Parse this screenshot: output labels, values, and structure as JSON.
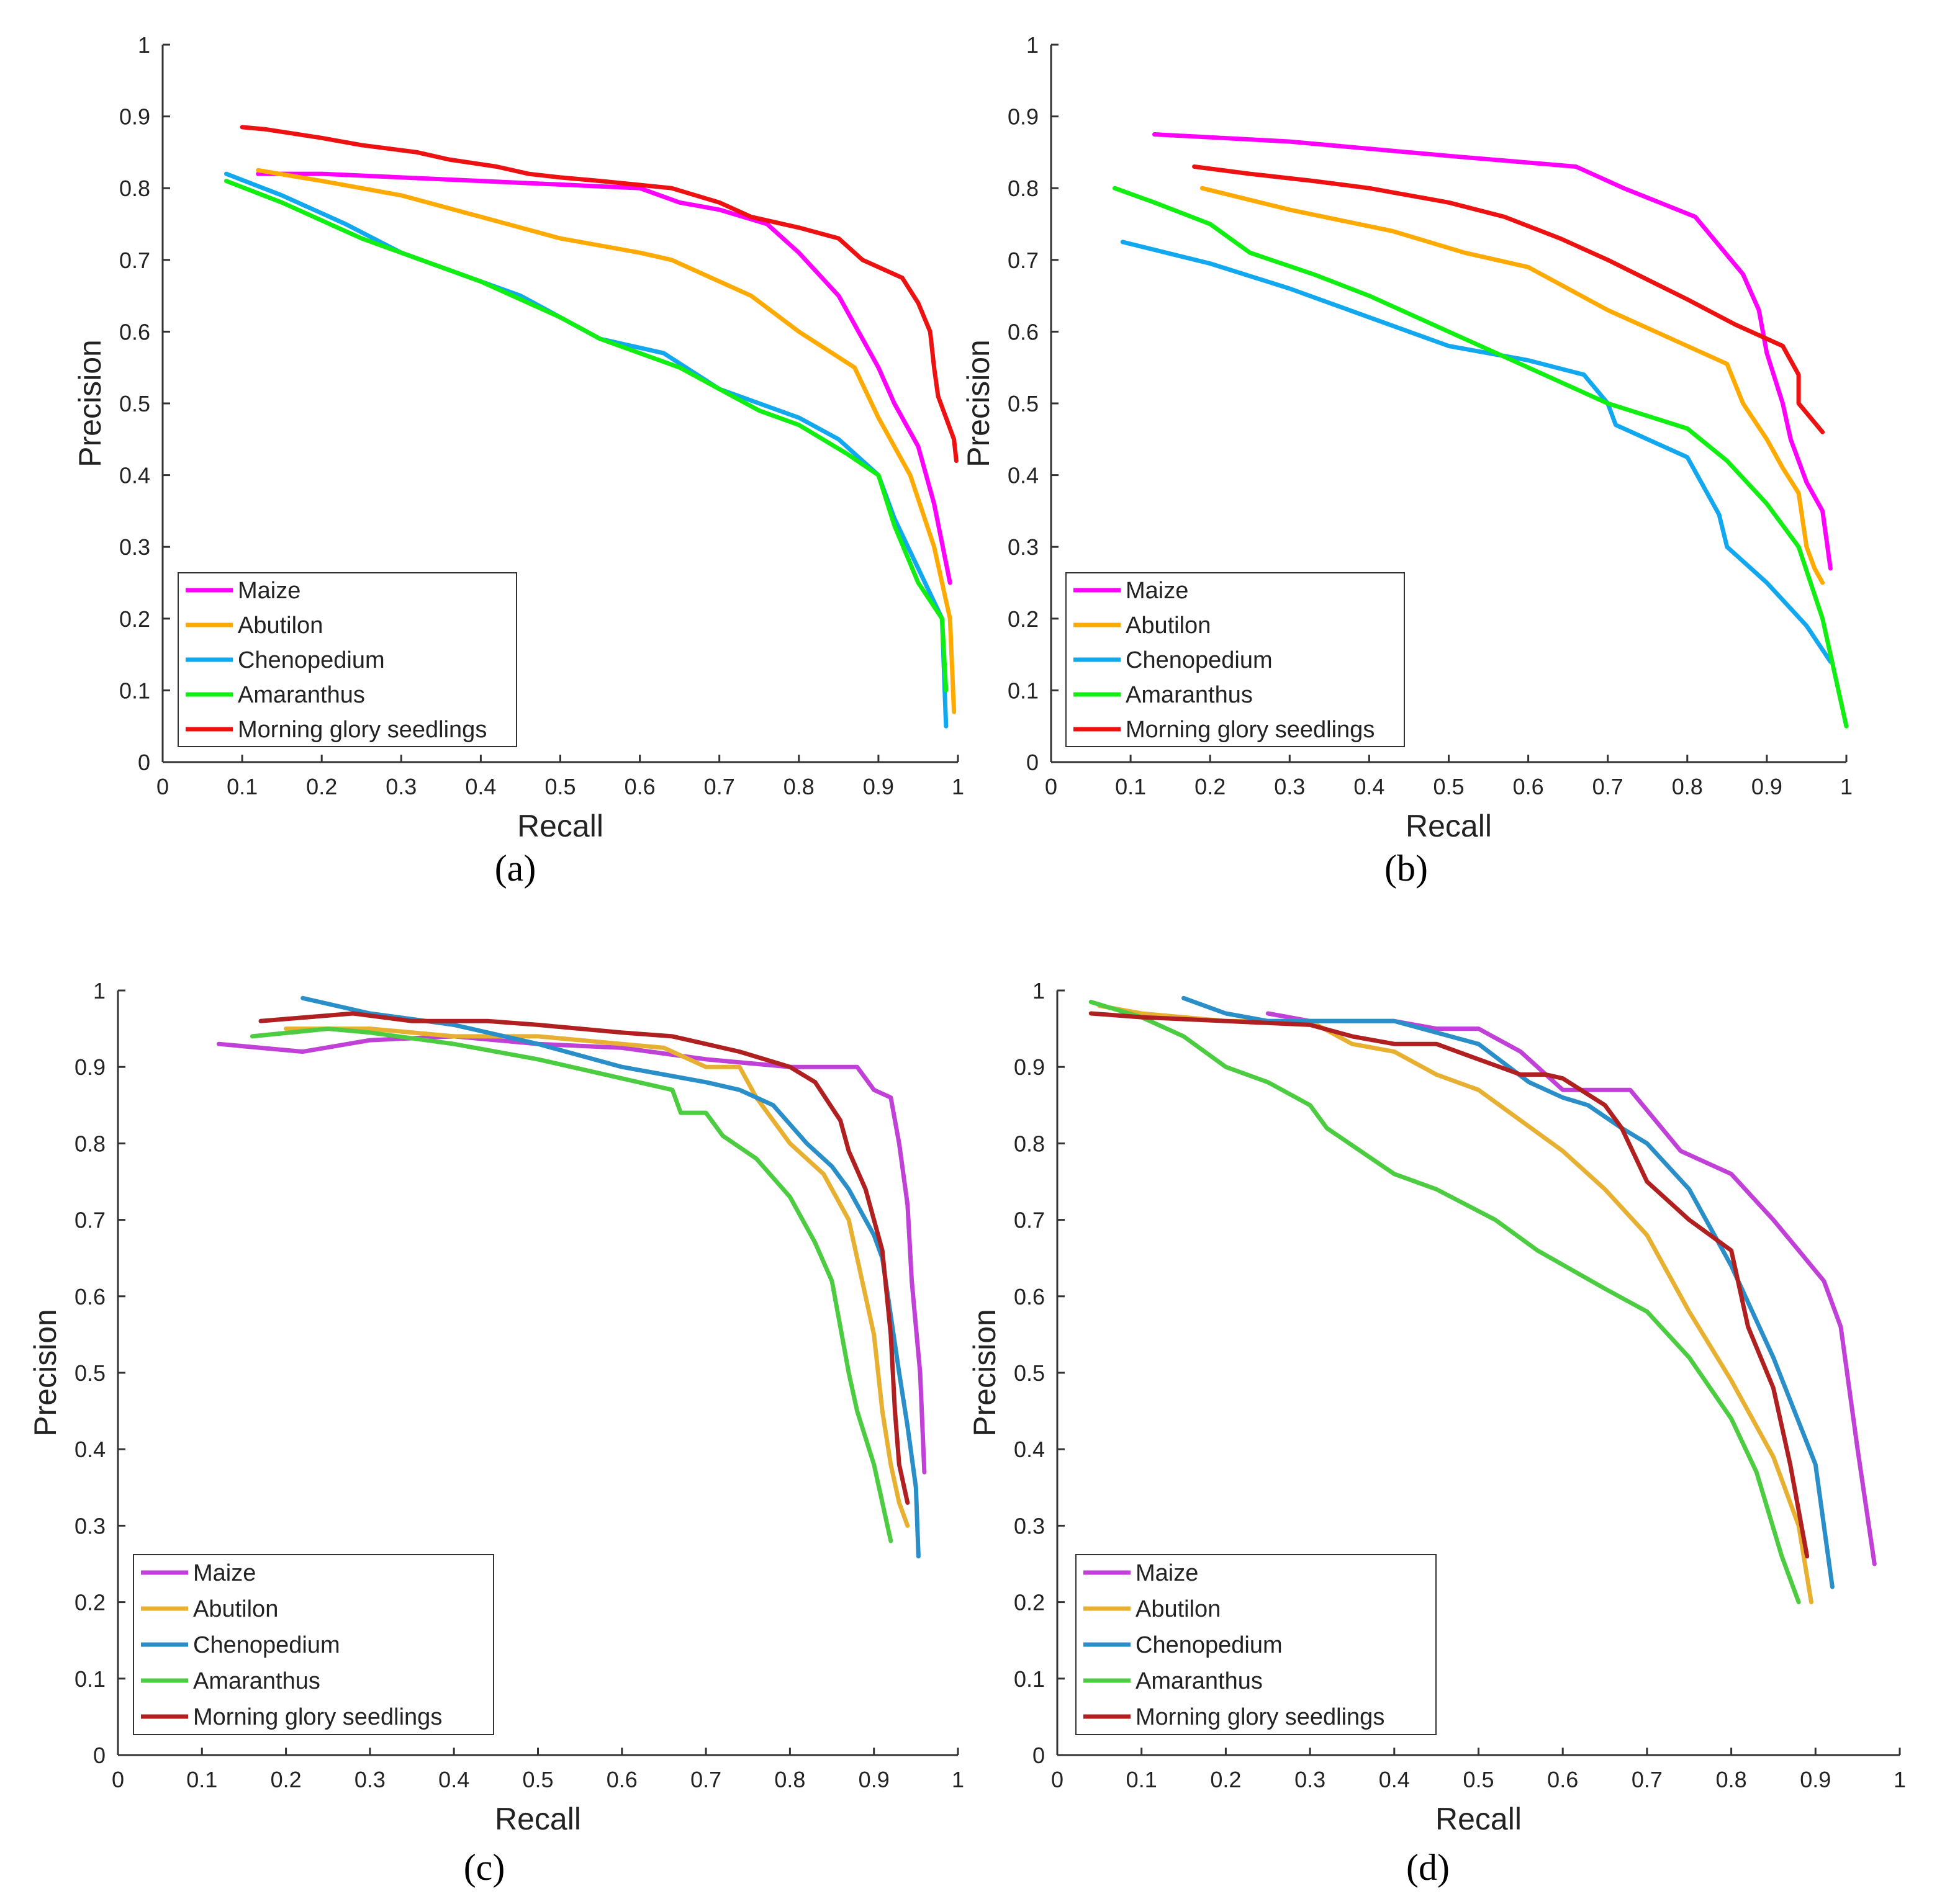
{
  "colors": {
    "bright": {
      "Maize": "#ff00ff",
      "Abutilon": "#ffaa00",
      "Chenopedium": "#11a8f0",
      "Amaranthus": "#11ee11",
      "Morning glory seedlings": "#ee1111"
    },
    "muted": {
      "Maize": "#c040d8",
      "Abutilon": "#e8b030",
      "Chenopedium": "#2a8fc8",
      "Amaranthus": "#4ccc40",
      "Morning glory seedlings": "#b02020"
    }
  },
  "chart_data": [
    {
      "id": "a",
      "caption": "(a)",
      "type": "line",
      "xlabel": "Recall",
      "ylabel": "Precision",
      "xlim": [
        0,
        1
      ],
      "ylim": [
        0,
        1
      ],
      "xticks": [
        "0",
        "0.1",
        "0.2",
        "0.3",
        "0.4",
        "0.5",
        "0.6",
        "0.7",
        "0.8",
        "0.9",
        "1"
      ],
      "yticks": [
        "0",
        "0.1",
        "0.2",
        "0.3",
        "0.4",
        "0.5",
        "0.6",
        "0.7",
        "0.8",
        "0.9",
        "1"
      ],
      "grid": false,
      "legend_position": "bottom-left",
      "palette": "bright",
      "series": [
        {
          "name": "Maize",
          "x": [
            0.12,
            0.2,
            0.3,
            0.4,
            0.5,
            0.6,
            0.65,
            0.7,
            0.76,
            0.8,
            0.85,
            0.88,
            0.9,
            0.92,
            0.95,
            0.97,
            0.99
          ],
          "y": [
            0.82,
            0.82,
            0.815,
            0.81,
            0.805,
            0.8,
            0.78,
            0.77,
            0.75,
            0.71,
            0.65,
            0.59,
            0.55,
            0.5,
            0.44,
            0.36,
            0.25
          ]
        },
        {
          "name": "Abutilon",
          "x": [
            0.12,
            0.2,
            0.3,
            0.4,
            0.5,
            0.6,
            0.64,
            0.7,
            0.74,
            0.8,
            0.87,
            0.9,
            0.94,
            0.97,
            0.99,
            0.995
          ],
          "y": [
            0.825,
            0.81,
            0.79,
            0.76,
            0.73,
            0.71,
            0.7,
            0.67,
            0.65,
            0.6,
            0.55,
            0.48,
            0.4,
            0.3,
            0.2,
            0.07
          ]
        },
        {
          "name": "Chenopedium",
          "x": [
            0.08,
            0.15,
            0.23,
            0.3,
            0.4,
            0.45,
            0.5,
            0.55,
            0.63,
            0.7,
            0.75,
            0.8,
            0.85,
            0.9,
            0.92,
            0.95,
            0.98,
            0.985
          ],
          "y": [
            0.82,
            0.79,
            0.75,
            0.71,
            0.67,
            0.65,
            0.62,
            0.59,
            0.57,
            0.52,
            0.5,
            0.48,
            0.45,
            0.4,
            0.34,
            0.27,
            0.2,
            0.05
          ]
        },
        {
          "name": "Amaranthus",
          "x": [
            0.08,
            0.15,
            0.25,
            0.3,
            0.4,
            0.5,
            0.55,
            0.6,
            0.65,
            0.7,
            0.75,
            0.8,
            0.83,
            0.86,
            0.9,
            0.92,
            0.95,
            0.98,
            0.985
          ],
          "y": [
            0.81,
            0.78,
            0.73,
            0.71,
            0.67,
            0.62,
            0.59,
            0.57,
            0.55,
            0.52,
            0.49,
            0.47,
            0.45,
            0.43,
            0.4,
            0.33,
            0.25,
            0.2,
            0.1
          ]
        },
        {
          "name": "Morning glory seedlings",
          "x": [
            0.1,
            0.13,
            0.2,
            0.25,
            0.32,
            0.36,
            0.42,
            0.46,
            0.5,
            0.55,
            0.64,
            0.7,
            0.74,
            0.8,
            0.85,
            0.88,
            0.93,
            0.95,
            0.965,
            0.97,
            0.975,
            0.985,
            0.995,
            0.998
          ],
          "y": [
            0.885,
            0.882,
            0.87,
            0.86,
            0.85,
            0.84,
            0.83,
            0.82,
            0.815,
            0.81,
            0.8,
            0.78,
            0.76,
            0.745,
            0.73,
            0.7,
            0.675,
            0.64,
            0.6,
            0.55,
            0.51,
            0.48,
            0.45,
            0.42
          ]
        }
      ]
    },
    {
      "id": "b",
      "caption": "(b)",
      "type": "line",
      "xlabel": "Recall",
      "ylabel": "Precision",
      "xlim": [
        0,
        1
      ],
      "ylim": [
        0,
        1
      ],
      "xticks": [
        "0",
        "0.1",
        "0.2",
        "0.3",
        "0.4",
        "0.5",
        "0.6",
        "0.7",
        "0.8",
        "0.9",
        "1"
      ],
      "yticks": [
        "0",
        "0.1",
        "0.2",
        "0.3",
        "0.4",
        "0.5",
        "0.6",
        "0.7",
        "0.8",
        "0.9",
        "1"
      ],
      "grid": false,
      "legend_position": "bottom-left",
      "palette": "bright",
      "series": [
        {
          "name": "Maize",
          "x": [
            0.13,
            0.3,
            0.5,
            0.66,
            0.72,
            0.81,
            0.87,
            0.89,
            0.9,
            0.92,
            0.93,
            0.95,
            0.97,
            0.98
          ],
          "y": [
            0.875,
            0.865,
            0.845,
            0.83,
            0.8,
            0.76,
            0.68,
            0.63,
            0.57,
            0.5,
            0.45,
            0.39,
            0.35,
            0.27
          ]
        },
        {
          "name": "Abutilon",
          "x": [
            0.19,
            0.3,
            0.43,
            0.52,
            0.6,
            0.7,
            0.76,
            0.85,
            0.87,
            0.9,
            0.92,
            0.94,
            0.95,
            0.96,
            0.97
          ],
          "y": [
            0.8,
            0.77,
            0.74,
            0.71,
            0.69,
            0.63,
            0.6,
            0.555,
            0.5,
            0.45,
            0.41,
            0.375,
            0.3,
            0.27,
            0.25
          ]
        },
        {
          "name": "Chenopedium",
          "x": [
            0.09,
            0.2,
            0.3,
            0.4,
            0.5,
            0.6,
            0.67,
            0.7,
            0.71,
            0.8,
            0.84,
            0.85,
            0.9,
            0.95,
            0.98
          ],
          "y": [
            0.725,
            0.695,
            0.66,
            0.62,
            0.58,
            0.56,
            0.54,
            0.5,
            0.47,
            0.425,
            0.345,
            0.3,
            0.25,
            0.19,
            0.14
          ]
        },
        {
          "name": "Amaranthus",
          "x": [
            0.08,
            0.13,
            0.2,
            0.25,
            0.33,
            0.4,
            0.5,
            0.6,
            0.7,
            0.8,
            0.85,
            0.9,
            0.94,
            0.97,
            1.0
          ],
          "y": [
            0.8,
            0.78,
            0.75,
            0.71,
            0.68,
            0.65,
            0.6,
            0.55,
            0.5,
            0.465,
            0.42,
            0.36,
            0.3,
            0.2,
            0.05
          ]
        },
        {
          "name": "Morning glory seedlings",
          "x": [
            0.18,
            0.25,
            0.33,
            0.4,
            0.5,
            0.57,
            0.64,
            0.7,
            0.8,
            0.86,
            0.92,
            0.94,
            0.94,
            0.97
          ],
          "y": [
            0.83,
            0.82,
            0.81,
            0.8,
            0.78,
            0.76,
            0.73,
            0.7,
            0.645,
            0.61,
            0.58,
            0.54,
            0.5,
            0.46
          ]
        }
      ]
    },
    {
      "id": "c",
      "caption": "(c)",
      "type": "line",
      "xlabel": "Recall",
      "ylabel": "Precision",
      "xlim": [
        0,
        1
      ],
      "ylim": [
        0,
        1
      ],
      "xticks": [
        "0",
        "0.1",
        "0.2",
        "0.3",
        "0.4",
        "0.5",
        "0.6",
        "0.7",
        "0.8",
        "0.9",
        "1"
      ],
      "yticks": [
        "0",
        "0.1",
        "0.2",
        "0.3",
        "0.4",
        "0.5",
        "0.6",
        "0.7",
        "0.8",
        "0.9",
        "1"
      ],
      "grid": false,
      "legend_position": "bottom-left",
      "palette": "muted",
      "series": [
        {
          "name": "Maize",
          "x": [
            0.12,
            0.22,
            0.3,
            0.4,
            0.5,
            0.6,
            0.7,
            0.8,
            0.88,
            0.9,
            0.92,
            0.93,
            0.94,
            0.945,
            0.955,
            0.96
          ],
          "y": [
            0.93,
            0.92,
            0.935,
            0.94,
            0.93,
            0.925,
            0.91,
            0.9,
            0.9,
            0.87,
            0.86,
            0.8,
            0.72,
            0.62,
            0.5,
            0.37
          ]
        },
        {
          "name": "Abutilon",
          "x": [
            0.2,
            0.3,
            0.4,
            0.5,
            0.6,
            0.65,
            0.7,
            0.74,
            0.76,
            0.8,
            0.84,
            0.87,
            0.89,
            0.9,
            0.91,
            0.92,
            0.93,
            0.94
          ],
          "y": [
            0.95,
            0.95,
            0.94,
            0.94,
            0.93,
            0.925,
            0.9,
            0.9,
            0.86,
            0.8,
            0.76,
            0.7,
            0.6,
            0.55,
            0.45,
            0.38,
            0.33,
            0.3
          ]
        },
        {
          "name": "Chenopedium",
          "x": [
            0.22,
            0.3,
            0.4,
            0.5,
            0.6,
            0.65,
            0.7,
            0.74,
            0.78,
            0.82,
            0.85,
            0.87,
            0.88,
            0.9,
            0.91,
            0.93,
            0.94,
            0.95,
            0.953
          ],
          "y": [
            0.99,
            0.97,
            0.955,
            0.93,
            0.9,
            0.89,
            0.88,
            0.87,
            0.85,
            0.8,
            0.77,
            0.74,
            0.72,
            0.68,
            0.65,
            0.5,
            0.43,
            0.35,
            0.26
          ]
        },
        {
          "name": "Amaranthus",
          "x": [
            0.16,
            0.25,
            0.3,
            0.4,
            0.5,
            0.6,
            0.66,
            0.67,
            0.7,
            0.72,
            0.76,
            0.8,
            0.83,
            0.85,
            0.86,
            0.87,
            0.88,
            0.9,
            0.92
          ],
          "y": [
            0.94,
            0.95,
            0.945,
            0.93,
            0.91,
            0.885,
            0.87,
            0.84,
            0.84,
            0.81,
            0.78,
            0.73,
            0.67,
            0.62,
            0.56,
            0.5,
            0.45,
            0.38,
            0.28
          ]
        },
        {
          "name": "Morning glory seedlings",
          "x": [
            0.17,
            0.28,
            0.35,
            0.44,
            0.5,
            0.6,
            0.66,
            0.7,
            0.74,
            0.77,
            0.8,
            0.83,
            0.86,
            0.87,
            0.89,
            0.9,
            0.91,
            0.92,
            0.925,
            0.93,
            0.94
          ],
          "y": [
            0.96,
            0.97,
            0.96,
            0.96,
            0.955,
            0.945,
            0.94,
            0.93,
            0.92,
            0.91,
            0.9,
            0.88,
            0.83,
            0.79,
            0.74,
            0.7,
            0.66,
            0.55,
            0.45,
            0.38,
            0.33
          ]
        }
      ]
    },
    {
      "id": "d",
      "caption": "(d)",
      "type": "line",
      "xlabel": "Recall",
      "ylabel": "Precision",
      "xlim": [
        0,
        1
      ],
      "ylim": [
        0,
        1
      ],
      "xticks": [
        "0",
        "0.1",
        "0.2",
        "0.3",
        "0.4",
        "0.5",
        "0.6",
        "0.7",
        "0.8",
        "0.9",
        "1"
      ],
      "yticks": [
        "0",
        "0.1",
        "0.2",
        "0.3",
        "0.4",
        "0.5",
        "0.6",
        "0.7",
        "0.8",
        "0.9",
        "1"
      ],
      "grid": false,
      "legend_position": "bottom-left",
      "palette": "muted",
      "series": [
        {
          "name": "Maize",
          "x": [
            0.25,
            0.3,
            0.4,
            0.45,
            0.5,
            0.55,
            0.6,
            0.68,
            0.74,
            0.8,
            0.85,
            0.88,
            0.91,
            0.93,
            0.95,
            0.97
          ],
          "y": [
            0.97,
            0.96,
            0.96,
            0.95,
            0.95,
            0.92,
            0.87,
            0.87,
            0.79,
            0.76,
            0.7,
            0.66,
            0.62,
            0.56,
            0.4,
            0.25
          ]
        },
        {
          "name": "Abutilon",
          "x": [
            0.05,
            0.1,
            0.2,
            0.3,
            0.35,
            0.4,
            0.45,
            0.5,
            0.55,
            0.6,
            0.65,
            0.7,
            0.75,
            0.8,
            0.85,
            0.88,
            0.895
          ],
          "y": [
            0.98,
            0.97,
            0.96,
            0.96,
            0.93,
            0.92,
            0.89,
            0.87,
            0.83,
            0.79,
            0.74,
            0.68,
            0.58,
            0.49,
            0.39,
            0.3,
            0.2
          ]
        },
        {
          "name": "Chenopedium",
          "x": [
            0.15,
            0.2,
            0.25,
            0.3,
            0.4,
            0.5,
            0.56,
            0.6,
            0.63,
            0.67,
            0.7,
            0.75,
            0.8,
            0.85,
            0.9,
            0.92
          ],
          "y": [
            0.99,
            0.97,
            0.96,
            0.96,
            0.96,
            0.93,
            0.88,
            0.86,
            0.85,
            0.82,
            0.8,
            0.74,
            0.64,
            0.52,
            0.38,
            0.22
          ]
        },
        {
          "name": "Amaranthus",
          "x": [
            0.04,
            0.1,
            0.15,
            0.2,
            0.25,
            0.3,
            0.32,
            0.4,
            0.45,
            0.52,
            0.57,
            0.65,
            0.7,
            0.75,
            0.8,
            0.83,
            0.86,
            0.88
          ],
          "y": [
            0.985,
            0.965,
            0.94,
            0.9,
            0.88,
            0.85,
            0.82,
            0.76,
            0.74,
            0.7,
            0.66,
            0.61,
            0.58,
            0.52,
            0.44,
            0.37,
            0.26,
            0.2
          ]
        },
        {
          "name": "Morning glory seedlings",
          "x": [
            0.04,
            0.1,
            0.2,
            0.3,
            0.35,
            0.4,
            0.45,
            0.5,
            0.55,
            0.58,
            0.6,
            0.65,
            0.67,
            0.7,
            0.75,
            0.8,
            0.82,
            0.85,
            0.87,
            0.89
          ],
          "y": [
            0.97,
            0.965,
            0.96,
            0.955,
            0.94,
            0.93,
            0.93,
            0.91,
            0.89,
            0.89,
            0.885,
            0.85,
            0.82,
            0.75,
            0.7,
            0.66,
            0.56,
            0.48,
            0.38,
            0.26
          ]
        }
      ]
    }
  ]
}
